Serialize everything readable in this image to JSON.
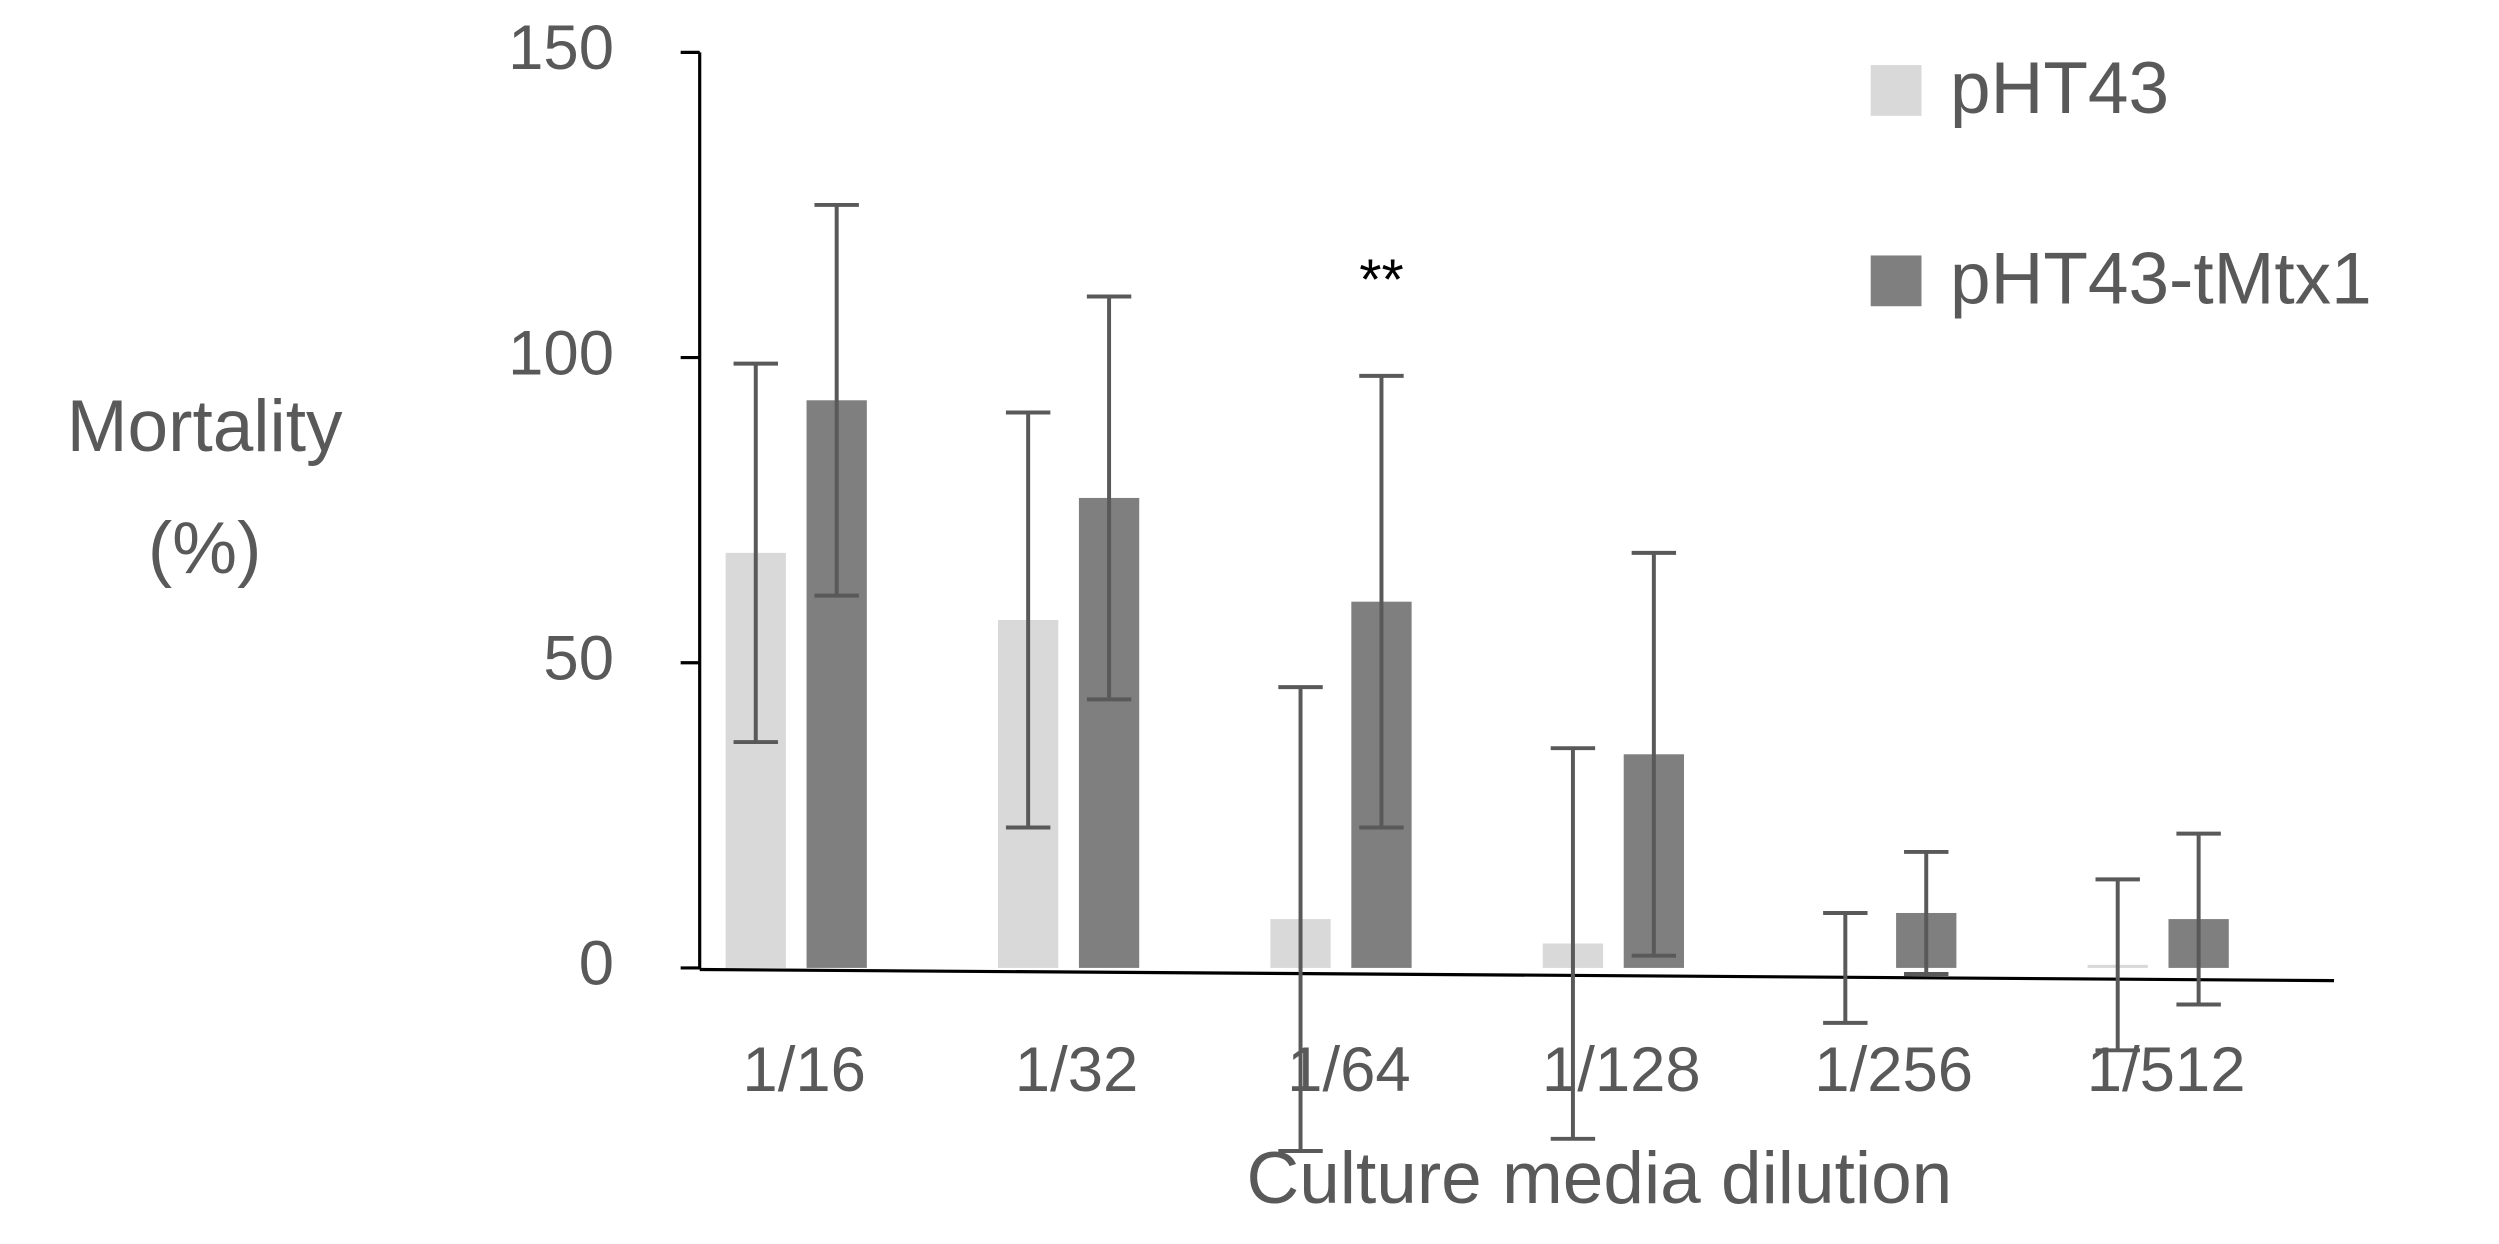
{
  "chart_data": {
    "type": "bar",
    "x_label": "Culture media dilution",
    "y_label": [
      "Mortality",
      "(%)"
    ],
    "categories": [
      "1/16",
      "1/32",
      "1/64",
      "1/128",
      "1/256",
      "1/512"
    ],
    "series": [
      {
        "name": "pHT43",
        "color": "#d9d9d9",
        "values": [
          68,
          57,
          8,
          4,
          0,
          0.5
        ],
        "errors": [
          31,
          34,
          38,
          32,
          9,
          14
        ]
      },
      {
        "name": "pHT43-tMtx1",
        "color": "#7f7f7f",
        "values": [
          93,
          77,
          60,
          35,
          9,
          8
        ],
        "errors": [
          32,
          33,
          37,
          33,
          10,
          14
        ]
      }
    ],
    "annotations": [
      {
        "text": "**",
        "series": 1,
        "category": 2
      }
    ],
    "ylim": [
      0,
      150
    ],
    "yticks": [
      0,
      50,
      100,
      150
    ],
    "error_color": "#595959",
    "legend": "top-right",
    "grid": false
  }
}
